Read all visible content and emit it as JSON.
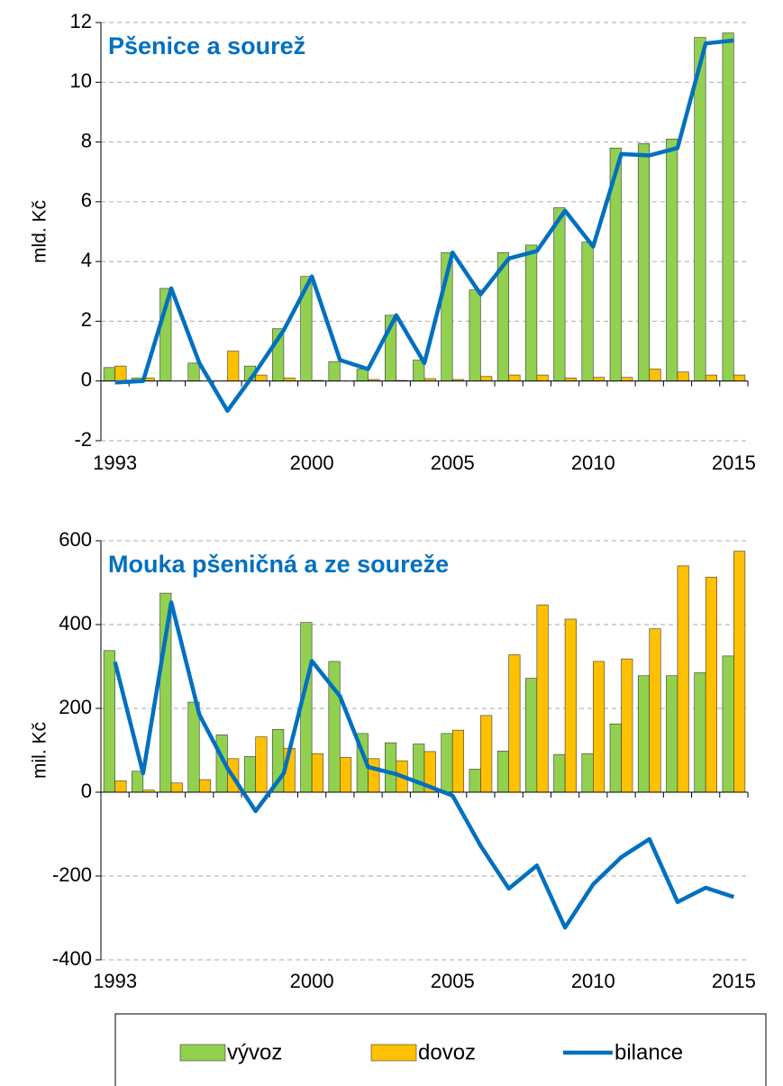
{
  "chart_data": [
    {
      "type": "bar",
      "title": "Pšenice a sourež",
      "y_label": "mld. Kč",
      "categories": [
        "1993",
        null,
        null,
        null,
        null,
        null,
        null,
        "2000",
        null,
        null,
        null,
        null,
        "2005",
        null,
        null,
        null,
        null,
        "2010",
        null,
        null,
        null,
        null,
        "2015"
      ],
      "series": [
        {
          "name": "vývoz",
          "type": "bar",
          "color": "#92d050",
          "values": [
            0.45,
            0.1,
            3.1,
            0.6,
            0,
            0.5,
            1.75,
            3.5,
            0.65,
            0.4,
            2.2,
            0.7,
            4.3,
            3.05,
            4.3,
            4.55,
            5.8,
            4.65,
            7.8,
            7.95,
            8.1,
            11.5,
            11.65
          ]
        },
        {
          "name": "dovoz",
          "type": "bar",
          "color": "#ffc000",
          "values": [
            0.5,
            0.1,
            0,
            0,
            1.0,
            0.2,
            0.1,
            0.02,
            0,
            0.05,
            0.02,
            0.08,
            0.05,
            0.15,
            0.2,
            0.2,
            0.1,
            0.12,
            0.12,
            0.4,
            0.3,
            0.2,
            0.2
          ]
        },
        {
          "name": "bilance",
          "type": "line",
          "color": "#0070c0",
          "values": [
            -0.05,
            0,
            3.1,
            0.6,
            -1.0,
            0.3,
            1.7,
            3.5,
            0.7,
            0.4,
            2.2,
            0.6,
            4.3,
            2.9,
            4.1,
            4.35,
            5.7,
            4.5,
            7.6,
            7.55,
            7.8,
            11.3,
            11.4
          ]
        }
      ],
      "ylim": [
        -2,
        12
      ],
      "yticks": [
        -2,
        0,
        2,
        4,
        6,
        8,
        10,
        12
      ],
      "grid": true
    },
    {
      "type": "bar",
      "title": "Mouka pšeničná a ze soureže",
      "y_label": "mil. Kč",
      "categories": [
        "1993",
        null,
        null,
        null,
        null,
        null,
        null,
        "2000",
        null,
        null,
        null,
        null,
        "2005",
        null,
        null,
        null,
        null,
        "2010",
        null,
        null,
        null,
        null,
        "2015"
      ],
      "series": [
        {
          "name": "vývoz",
          "type": "bar",
          "color": "#92d050",
          "values": [
            338,
            50,
            475,
            215,
            137,
            85,
            150,
            405,
            312,
            140,
            118,
            115,
            140,
            55,
            98,
            272,
            90,
            92,
            163,
            278,
            278,
            285,
            325
          ]
        },
        {
          "name": "dovoz",
          "type": "bar",
          "color": "#ffc000",
          "values": [
            27,
            5,
            22,
            30,
            80,
            132,
            105,
            92,
            83,
            80,
            75,
            97,
            148,
            183,
            328,
            447,
            413,
            312,
            318,
            390,
            540,
            513,
            575
          ]
        },
        {
          "name": "bilance",
          "type": "line",
          "color": "#0070c0",
          "values": [
            311,
            45,
            453,
            185,
            57,
            -45,
            45,
            313,
            229,
            60,
            43,
            18,
            -8,
            -128,
            -230,
            -175,
            -323,
            -220,
            -155,
            -112,
            -262,
            -228,
            -250
          ]
        }
      ],
      "ylim": [
        -400,
        600
      ],
      "yticks": [
        -400,
        -200,
        0,
        200,
        400,
        600
      ],
      "grid": true
    }
  ]
}
